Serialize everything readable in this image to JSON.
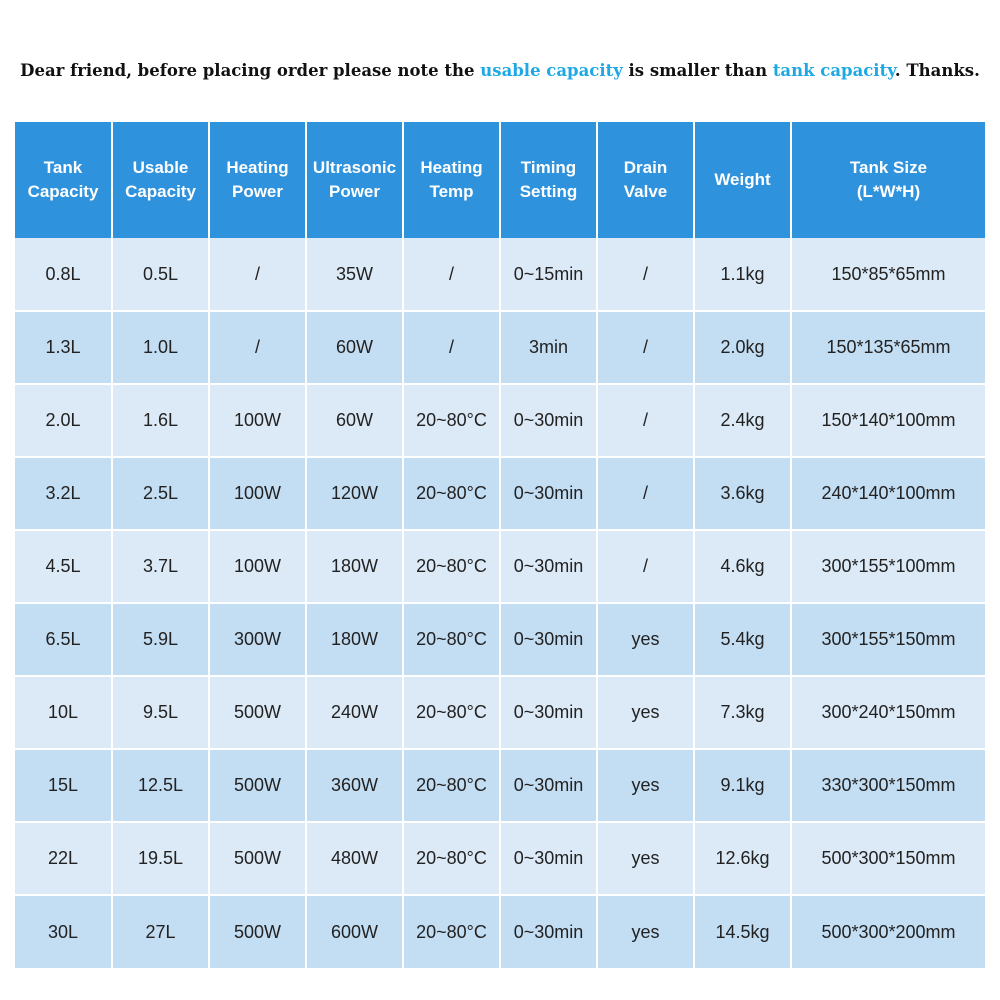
{
  "notice": {
    "prefix": "Dear friend, before placing order please note the ",
    "highlight1": "usable capacity",
    "middle": " is smaller than ",
    "highlight2": "tank capacity",
    "suffix": ". Thanks.",
    "highlight_color": "#1ea8e4"
  },
  "table": {
    "header_color": "#2f92dd",
    "row_colors": [
      "#dceaf7",
      "#c3ddf3"
    ],
    "headers": [
      [
        "Tank",
        "Capacity"
      ],
      [
        "Usable",
        "Capacity"
      ],
      [
        "Heating",
        "Power"
      ],
      [
        "Ultrasonic",
        "Power"
      ],
      [
        "Heating",
        "Temp"
      ],
      [
        "Timing",
        "Setting"
      ],
      [
        "Drain",
        "Valve"
      ],
      [
        "Weight"
      ],
      [
        "Tank Size",
        "(L*W*H)"
      ]
    ],
    "rows": [
      [
        "0.8L",
        "0.5L",
        "/",
        "35W",
        "/",
        "0~15min",
        "/",
        "1.1kg",
        "150*85*65mm"
      ],
      [
        "1.3L",
        "1.0L",
        "/",
        "60W",
        "/",
        "3min",
        "/",
        "2.0kg",
        "150*135*65mm"
      ],
      [
        "2.0L",
        "1.6L",
        "100W",
        "60W",
        "20~80°C",
        "0~30min",
        "/",
        "2.4kg",
        "150*140*100mm"
      ],
      [
        "3.2L",
        "2.5L",
        "100W",
        "120W",
        "20~80°C",
        "0~30min",
        "/",
        "3.6kg",
        "240*140*100mm"
      ],
      [
        "4.5L",
        "3.7L",
        "100W",
        "180W",
        "20~80°C",
        "0~30min",
        "/",
        "4.6kg",
        "300*155*100mm"
      ],
      [
        "6.5L",
        "5.9L",
        "300W",
        "180W",
        "20~80°C",
        "0~30min",
        "yes",
        "5.4kg",
        "300*155*150mm"
      ],
      [
        "10L",
        "9.5L",
        "500W",
        "240W",
        "20~80°C",
        "0~30min",
        "yes",
        "7.3kg",
        "300*240*150mm"
      ],
      [
        "15L",
        "12.5L",
        "500W",
        "360W",
        "20~80°C",
        "0~30min",
        "yes",
        "9.1kg",
        "330*300*150mm"
      ],
      [
        "22L",
        "19.5L",
        "500W",
        "480W",
        "20~80°C",
        "0~30min",
        "yes",
        "12.6kg",
        "500*300*150mm"
      ],
      [
        "30L",
        "27L",
        "500W",
        "600W",
        "20~80°C",
        "0~30min",
        "yes",
        "14.5kg",
        "500*300*200mm"
      ]
    ]
  }
}
